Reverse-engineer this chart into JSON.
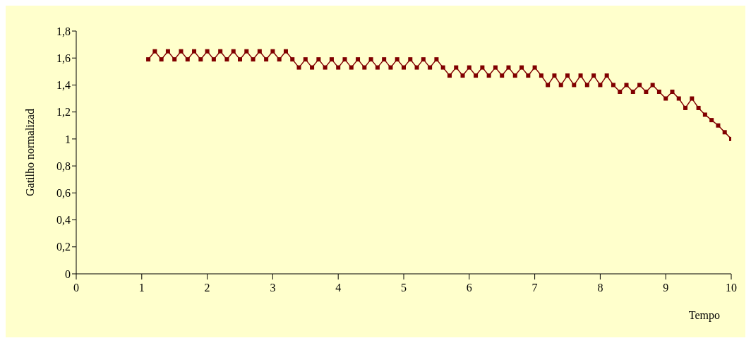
{
  "chart_data": {
    "type": "line",
    "xlabel": "Tempo",
    "ylabel": "Gatilho normalizad",
    "x": [
      1.1,
      1.2,
      1.3,
      1.4,
      1.5,
      1.6,
      1.7,
      1.8,
      1.9,
      2.0,
      2.1,
      2.2,
      2.3,
      2.4,
      2.5,
      2.6,
      2.7,
      2.8,
      2.9,
      3.0,
      3.1,
      3.2,
      3.3,
      3.4,
      3.5,
      3.6,
      3.7,
      3.8,
      3.9,
      4.0,
      4.1,
      4.2,
      4.3,
      4.4,
      4.5,
      4.6,
      4.7,
      4.8,
      4.9,
      5.0,
      5.1,
      5.2,
      5.3,
      5.4,
      5.5,
      5.6,
      5.7,
      5.8,
      5.9,
      6.0,
      6.1,
      6.2,
      6.3,
      6.4,
      6.5,
      6.6,
      6.7,
      6.8,
      6.9,
      7.0,
      7.1,
      7.2,
      7.3,
      7.4,
      7.5,
      7.6,
      7.7,
      7.8,
      7.9,
      8.0,
      8.1,
      8.2,
      8.3,
      8.4,
      8.5,
      8.6,
      8.7,
      8.8,
      8.9,
      9.0,
      9.1,
      9.2,
      9.3,
      9.4,
      9.5,
      9.6,
      9.7,
      9.8,
      9.9,
      10.0
    ],
    "series": [
      {
        "color": "#800000",
        "values": [
          1.59,
          1.65,
          1.59,
          1.65,
          1.59,
          1.65,
          1.59,
          1.65,
          1.59,
          1.65,
          1.59,
          1.65,
          1.59,
          1.65,
          1.59,
          1.65,
          1.59,
          1.65,
          1.59,
          1.65,
          1.59,
          1.65,
          1.59,
          1.53,
          1.59,
          1.53,
          1.59,
          1.53,
          1.59,
          1.53,
          1.59,
          1.53,
          1.59,
          1.53,
          1.59,
          1.53,
          1.59,
          1.53,
          1.59,
          1.53,
          1.59,
          1.53,
          1.59,
          1.53,
          1.59,
          1.53,
          1.47,
          1.53,
          1.47,
          1.53,
          1.47,
          1.53,
          1.47,
          1.53,
          1.47,
          1.53,
          1.47,
          1.53,
          1.47,
          1.53,
          1.47,
          1.4,
          1.47,
          1.4,
          1.47,
          1.4,
          1.47,
          1.4,
          1.47,
          1.4,
          1.47,
          1.4,
          1.35,
          1.4,
          1.35,
          1.4,
          1.35,
          1.4,
          1.35,
          1.3,
          1.35,
          1.3,
          1.23,
          1.3,
          1.23,
          1.18,
          1.14,
          1.1,
          1.05,
          1.0
        ]
      }
    ],
    "xlim": [
      0,
      10
    ],
    "xticks": [
      0,
      1,
      2,
      3,
      4,
      5,
      6,
      7,
      8,
      9,
      10
    ],
    "ylim": [
      0,
      1.8
    ],
    "yticks": [
      0,
      {
        "value": 0.2,
        "label": "0,2"
      },
      {
        "value": 0.4,
        "label": "0,4"
      },
      {
        "value": 0.6,
        "label": "0,6"
      },
      {
        "value": 0.8,
        "label": "0,8"
      },
      1,
      {
        "value": 1.2,
        "label": "1,2"
      },
      {
        "value": 1.4,
        "label": "1,4"
      },
      {
        "value": 1.6,
        "label": "1,6"
      },
      {
        "value": 1.8,
        "label": "1,8"
      }
    ],
    "grid": false,
    "legend": false,
    "marker": "square",
    "line_style": "solid"
  }
}
